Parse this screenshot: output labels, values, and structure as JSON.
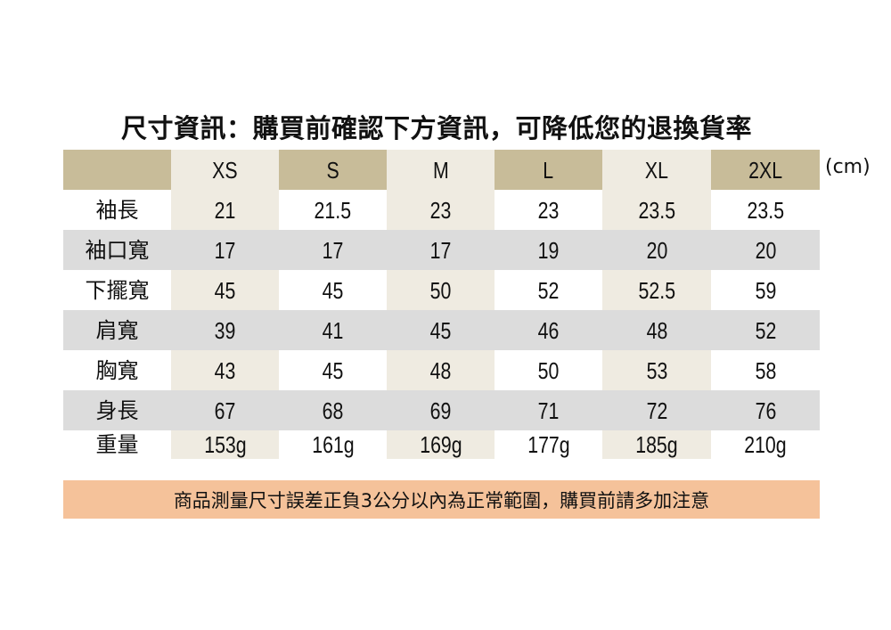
{
  "title": "尺寸資訊：購買前確認下方資訊，可降低您的退換貨率",
  "unit": "(cm)",
  "table": {
    "sizes": [
      "XS",
      "S",
      "M",
      "L",
      "XL",
      "2XL"
    ],
    "rows": [
      {
        "label": "袖長",
        "values": [
          "21",
          "21.5",
          "23",
          "23",
          "23.5",
          "23.5"
        ]
      },
      {
        "label": "袖口寬",
        "values": [
          "17",
          "17",
          "17",
          "19",
          "20",
          "20"
        ]
      },
      {
        "label": "下擺寬",
        "values": [
          "45",
          "45",
          "50",
          "52",
          "52.5",
          "59"
        ]
      },
      {
        "label": "肩寬",
        "values": [
          "39",
          "41",
          "45",
          "46",
          "48",
          "52"
        ]
      },
      {
        "label": "胸寬",
        "values": [
          "43",
          "45",
          "48",
          "50",
          "53",
          "58"
        ]
      },
      {
        "label": "身長",
        "values": [
          "67",
          "68",
          "69",
          "71",
          "72",
          "76"
        ]
      },
      {
        "label": "重量",
        "values": [
          "153g",
          "161g",
          "169g",
          "177g",
          "185g",
          "210g"
        ]
      }
    ]
  },
  "note": "商品測量尺寸誤差正負3公分以內為正常範圍，購買前請多加注意",
  "colors": {
    "header_gold": "#c8bc99",
    "header_cream": "#efebe1",
    "row_grey": "#dcdcdc",
    "note_bg": "#f5c29a"
  }
}
